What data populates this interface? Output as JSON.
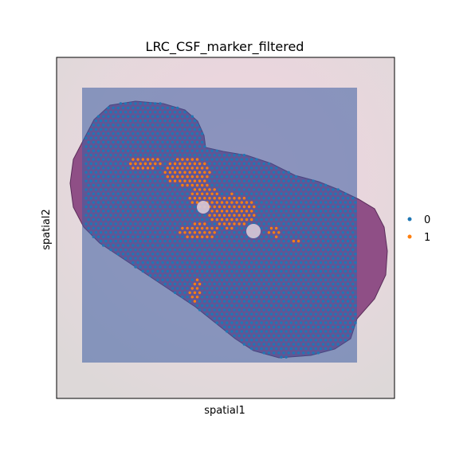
{
  "chart_data": {
    "type": "scatter",
    "title": "LRC_CSF_marker_filtered",
    "xlabel": "spatial1",
    "ylabel": "spatial2",
    "background": "H&E tissue section image",
    "grid": false,
    "ticks": false,
    "legend": {
      "placement": "right-center",
      "entries": [
        {
          "label": "0",
          "color": "#1f77b4"
        },
        {
          "label": "1",
          "color": "#ff7f0e"
        }
      ]
    },
    "series": [
      {
        "name": "0",
        "color": "#1f77b4",
        "description": "spots covering tissue (majority)"
      },
      {
        "name": "1",
        "color": "#ff7f0e",
        "description": "CSF marker spots around the central ventricle region"
      }
    ]
  }
}
